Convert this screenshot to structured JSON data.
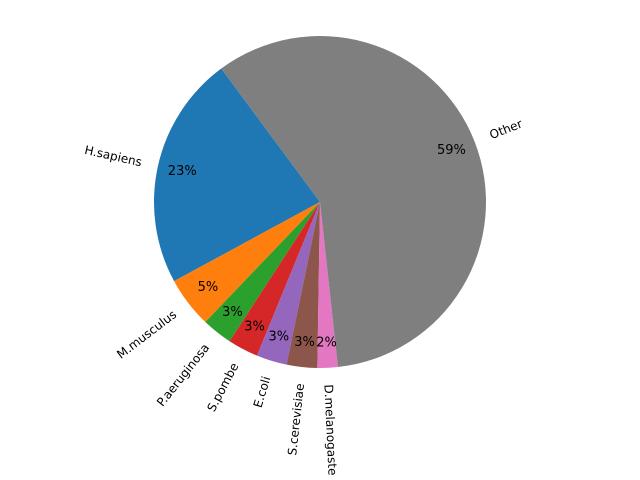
{
  "chart_data": {
    "type": "pie",
    "title": "",
    "slices": [
      {
        "label": "H.sapiens",
        "value": 23,
        "pct_label": "23%",
        "color": "#1f77b4"
      },
      {
        "label": "M.musculus",
        "value": 5,
        "pct_label": "5%",
        "color": "#ff7f0e"
      },
      {
        "label": "P.aeruginosa",
        "value": 3,
        "pct_label": "3%",
        "color": "#2ca02c"
      },
      {
        "label": "S.pombe",
        "value": 3,
        "pct_label": "3%",
        "color": "#d62728"
      },
      {
        "label": "E.coli",
        "value": 3,
        "pct_label": "3%",
        "color": "#9467bd"
      },
      {
        "label": "S.cerevisiae",
        "value": 3,
        "pct_label": "3%",
        "color": "#8c564b"
      },
      {
        "label": "D.melanogaste",
        "value": 2,
        "pct_label": "2%",
        "color": "#e377c2"
      },
      {
        "label": "Other",
        "value": 59,
        "pct_label": "59%",
        "color": "#7f7f7f"
      }
    ]
  }
}
